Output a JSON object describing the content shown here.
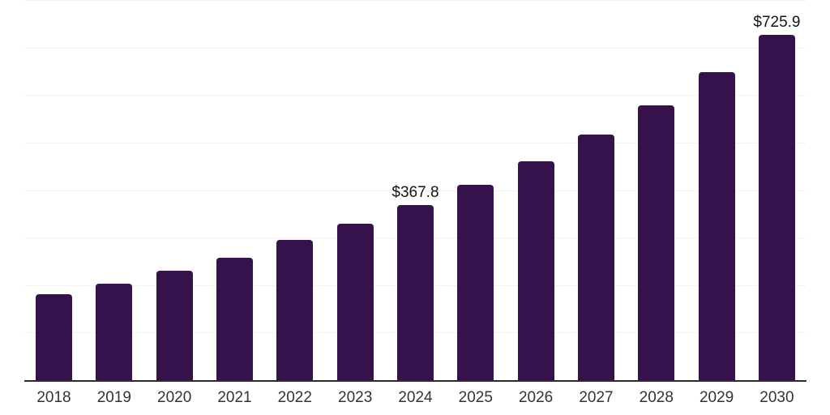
{
  "chart_data": {
    "type": "bar",
    "title": "",
    "xlabel": "",
    "ylabel": "",
    "categories": [
      "2018",
      "2019",
      "2020",
      "2021",
      "2022",
      "2023",
      "2024",
      "2025",
      "2026",
      "2027",
      "2028",
      "2029",
      "2030"
    ],
    "values": [
      180.9,
      202.5,
      229.8,
      257.8,
      294.4,
      328.4,
      367.8,
      411.9,
      461.4,
      516.7,
      578.7,
      648.1,
      725.9
    ],
    "value_labels": {
      "2024": "$367.8",
      "2030": "$725.9"
    },
    "ylim": [
      0,
      800
    ],
    "gridline_interval": 100,
    "grid": "horizontal",
    "legend_position": "none",
    "colors": {
      "bar": "#35124b",
      "gridline": "#f2f2f2",
      "axis_line": "#2b2b2b",
      "value_label_text": "#141414",
      "tick_label_text": "#333333",
      "background": "#ffffff"
    }
  }
}
